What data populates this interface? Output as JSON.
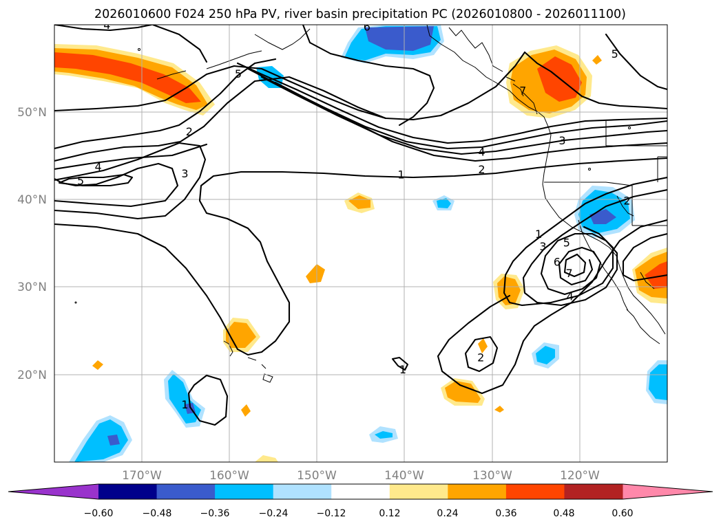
{
  "title": "2026010600 F024 250 hPa PV, river basin precipitation PC (2026010800 - 2026011100)",
  "map": {
    "lon_range": [
      -180,
      -110
    ],
    "lat_range": [
      10,
      60
    ],
    "lat_ticks": [
      {
        "value": 50,
        "label": "50°N"
      },
      {
        "value": 40,
        "label": "40°N"
      },
      {
        "value": 30,
        "label": "30°N"
      },
      {
        "value": 20,
        "label": "20°N"
      }
    ],
    "lon_ticks": [
      {
        "value": -170,
        "label": "170°W"
      },
      {
        "value": -160,
        "label": "160°W"
      },
      {
        "value": -150,
        "label": "150°W"
      },
      {
        "value": -140,
        "label": "140°W"
      },
      {
        "value": -130,
        "label": "130°W"
      },
      {
        "value": -120,
        "label": "120°W"
      }
    ]
  },
  "colorbar": {
    "colors": [
      "#9933cc",
      "#00008b",
      "#3a5bcc",
      "#00bfff",
      "#b0e2ff",
      "#ffffff",
      "#ffe98c",
      "#ffa500",
      "#ff4500",
      "#b22222",
      "#ff88aa"
    ],
    "labels": [
      "−0.60",
      "−0.48",
      "−0.36",
      "−0.24",
      "−0.12",
      "0.12",
      "0.24",
      "0.36",
      "0.48",
      "0.60"
    ]
  },
  "pv_contour_labels": [
    {
      "text": "4",
      "lon": -174,
      "lat": 60
    },
    {
      "text": "5",
      "lon": -159,
      "lat": 54.4
    },
    {
      "text": "6",
      "lon": -144.3,
      "lat": 59.8
    },
    {
      "text": "5",
      "lon": -116,
      "lat": 56.7
    },
    {
      "text": "2",
      "lon": -164.6,
      "lat": 47.8
    },
    {
      "text": "4",
      "lon": -131.2,
      "lat": 45.5
    },
    {
      "text": "2",
      "lon": -131.2,
      "lat": 43.5
    },
    {
      "text": "3",
      "lon": -122,
      "lat": 46.8
    },
    {
      "text": "4",
      "lon": -175,
      "lat": 43.8
    },
    {
      "text": "5",
      "lon": -177,
      "lat": 42.2
    },
    {
      "text": "3",
      "lon": -165.1,
      "lat": 43
    },
    {
      "text": "1",
      "lon": -140.4,
      "lat": 42.9
    },
    {
      "text": "2",
      "lon": -114.6,
      "lat": 39.9
    },
    {
      "text": "1",
      "lon": -124.7,
      "lat": 36.1
    },
    {
      "text": "3",
      "lon": -124.2,
      "lat": 34.7
    },
    {
      "text": "5",
      "lon": -121.5,
      "lat": 35.1
    },
    {
      "text": "6",
      "lon": -122.6,
      "lat": 32.9
    },
    {
      "text": "7",
      "lon": -121.2,
      "lat": 31.6
    },
    {
      "text": "4",
      "lon": -121.1,
      "lat": 29
    },
    {
      "text": "2",
      "lon": -131.3,
      "lat": 22
    },
    {
      "text": "1",
      "lon": -140.2,
      "lat": 20.6
    },
    {
      "text": "1",
      "lon": -165.1,
      "lat": 16.6
    },
    {
      "text": "7",
      "lon": -126.5,
      "lat": 52.5
    }
  ]
}
